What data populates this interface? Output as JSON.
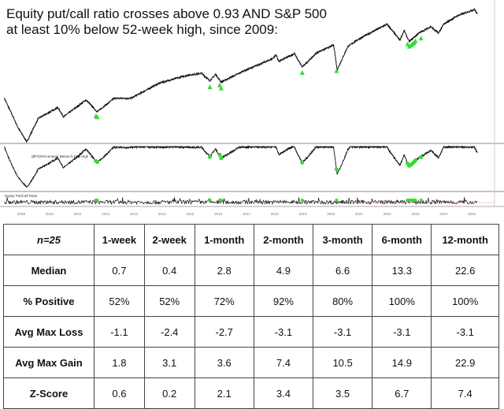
{
  "title": "Equity put/call ratio crosses above 0.93 AND S&P 500 at least 10% below 52-week high, since 2009:",
  "chart_data": [
    {
      "type": "line",
      "title": "Equity put/call ratio crosses above 0.93 AND S&P 500 at least 10% below 52-week high, since 2009:",
      "series": [
        {
          "x": [
            2008.4,
            2008.9,
            2009.2,
            2009.6,
            2010.3,
            2010.5,
            2011.3,
            2011.7,
            2012.3,
            2012.9,
            2013.9,
            2014.9,
            2015.4,
            2015.7,
            2015.9,
            2016.1,
            2016.9,
            2017.9,
            2018.05,
            2018.15,
            2018.7,
            2018.98,
            2019.5,
            2020.1,
            2020.22,
            2020.6,
            2021.0,
            2021.99,
            2022.45,
            2022.6,
            2022.78,
            2023.1,
            2023.55,
            2023.82,
            2024.0,
            2024.5,
            2025.1,
            2025.2
          ],
          "y": [
            1400,
            850,
            680,
            1000,
            1200,
            1030,
            1360,
            1120,
            1400,
            1400,
            1800,
            2050,
            2120,
            1870,
            2080,
            1830,
            2200,
            2680,
            2870,
            2580,
            2930,
            2350,
            2980,
            3380,
            2240,
            3300,
            3750,
            4780,
            3670,
            4300,
            3580,
            4100,
            4590,
            4120,
            4770,
            5500,
            6100,
            5650
          ]
        }
      ],
      "signals": [
        2011.65,
        2011.7,
        2015.7,
        2016.05,
        2016.1,
        2018.98,
        2020.2,
        2022.72,
        2022.78,
        2022.85,
        2022.9,
        2022.95,
        2023.0,
        2023.2
      ],
      "signal_color": "#33dd33",
      "yscale": "log",
      "panels": [
        "S&P 500",
        "($PX)Percentage Below N Day High",
        "Equity Put/Call Ratio"
      ],
      "xticks": [
        "2009",
        "2010",
        "2011",
        "2012",
        "2013",
        "2014",
        "2015",
        "2016",
        "2017",
        "2018",
        "2019",
        "2020",
        "2021",
        "2022",
        "2023",
        "2024",
        "2025"
      ]
    }
  ],
  "table": {
    "headers": [
      "n=25",
      "1-week",
      "2-week",
      "1-month",
      "2-month",
      "3-month",
      "6-month",
      "12-month"
    ],
    "rows": [
      {
        "label": "Median",
        "values": [
          "0.7",
          "0.4",
          "2.8",
          "4.9",
          "6.6",
          "13.3",
          "22.6"
        ]
      },
      {
        "label": "% Positive",
        "values": [
          "52%",
          "52%",
          "72%",
          "92%",
          "80%",
          "100%",
          "100%"
        ]
      },
      {
        "label": "Avg Max Loss",
        "values": [
          "-1.1",
          "-2.4",
          "-2.7",
          "-3.1",
          "-3.1",
          "-3.1",
          "-3.1"
        ]
      },
      {
        "label": "Avg Max Gain",
        "values": [
          "1.8",
          "3.1",
          "3.6",
          "7.4",
          "10.5",
          "14.9",
          "22.9"
        ]
      },
      {
        "label": "Z-Score",
        "values": [
          "0.6",
          "0.2",
          "2.1",
          "3.4",
          "3.5",
          "6.7",
          "7.4"
        ]
      }
    ]
  }
}
